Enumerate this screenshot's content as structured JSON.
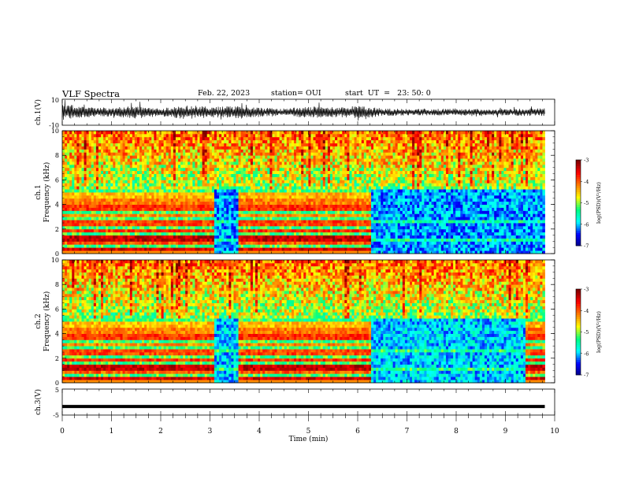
{
  "header": {
    "title": "VLF Spectra",
    "date": "Feb. 22, 2023",
    "station": "station= OUI",
    "start": "start  UT  =   23: 50: 0"
  },
  "colors": {
    "trace": "#000000",
    "frame": "#000000",
    "colormap": [
      "#00007f",
      "#0000ff",
      "#00ffff",
      "#00ff80",
      "#ffff00",
      "#ff7f00",
      "#ff0000",
      "#7f0000"
    ]
  },
  "chart_data": [
    {
      "type": "line",
      "panel": "ch1-waveform",
      "ylabel": "ch.1(V)",
      "ylim": [
        -10,
        10
      ],
      "yticklabels": [
        "10",
        "-10"
      ],
      "xlim": [
        0,
        10
      ],
      "note_values": "dense broadband waveform, envelope amplitude per 0.5 min",
      "x": [
        0,
        0.5,
        1,
        1.5,
        2,
        2.5,
        3,
        3.5,
        4,
        4.5,
        5,
        5.5,
        6,
        6.5,
        7,
        7.5,
        8,
        8.5,
        9,
        9.5,
        9.8
      ],
      "amplitude": [
        6,
        4,
        3.5,
        5,
        3,
        6,
        4,
        5,
        3.5,
        3,
        4.5,
        4,
        5,
        3,
        2.5,
        2.5,
        3,
        2.5,
        2.5,
        3,
        3
      ]
    },
    {
      "type": "heatmap",
      "panel": "ch1-spectrogram",
      "ylabel": "ch.1 Frequency (kHz)",
      "xlim": [
        0,
        9.8
      ],
      "ylim": [
        0,
        10
      ],
      "yticks": [
        0,
        2,
        4,
        6,
        8,
        10
      ],
      "colorbar": {
        "label": "log(PSD)(V²/Hz)",
        "range": [
          -7,
          -3
        ],
        "ticks": [
          -3,
          -4,
          -5,
          -6,
          -7
        ]
      },
      "segments": [
        {
          "x": [
            0,
            3.05
          ],
          "regime": "banded"
        },
        {
          "x": [
            3.05,
            3.55
          ],
          "regime": "quiet"
        },
        {
          "x": [
            3.55,
            6.25
          ],
          "regime": "banded"
        },
        {
          "x": [
            6.25,
            9.8
          ],
          "regime": "quiet"
        }
      ]
    },
    {
      "type": "heatmap",
      "panel": "ch2-spectrogram",
      "ylabel": "ch.2 Frequency (kHz)",
      "xlim": [
        0,
        9.8
      ],
      "ylim": [
        0,
        10
      ],
      "yticks": [
        0,
        2,
        4,
        6,
        8,
        10
      ],
      "colorbar": {
        "label": "log(PSD)(V²/Hz)",
        "range": [
          -7,
          -3
        ],
        "ticks": [
          -3,
          -4,
          -5,
          -6,
          -7
        ]
      },
      "segments": [
        {
          "x": [
            0,
            3.05
          ],
          "regime": "banded"
        },
        {
          "x": [
            3.05,
            3.55
          ],
          "regime": "quiet"
        },
        {
          "x": [
            3.55,
            6.25
          ],
          "regime": "banded"
        },
        {
          "x": [
            6.25,
            9.4
          ],
          "regime": "quiet"
        },
        {
          "x": [
            9.4,
            9.8
          ],
          "regime": "banded"
        }
      ]
    },
    {
      "type": "line",
      "panel": "ch3-waveform",
      "ylabel": "ch.3(V)",
      "ylim": [
        -5,
        5
      ],
      "yticklabels": [
        "5",
        "-5"
      ],
      "xlim": [
        0,
        10
      ],
      "x": [
        0,
        9.8
      ],
      "y": [
        -1.7,
        -1.7
      ],
      "xlabel": "Time  (min)",
      "xticks": [
        0,
        1,
        2,
        3,
        4,
        5,
        6,
        7,
        8,
        9,
        10
      ]
    }
  ]
}
